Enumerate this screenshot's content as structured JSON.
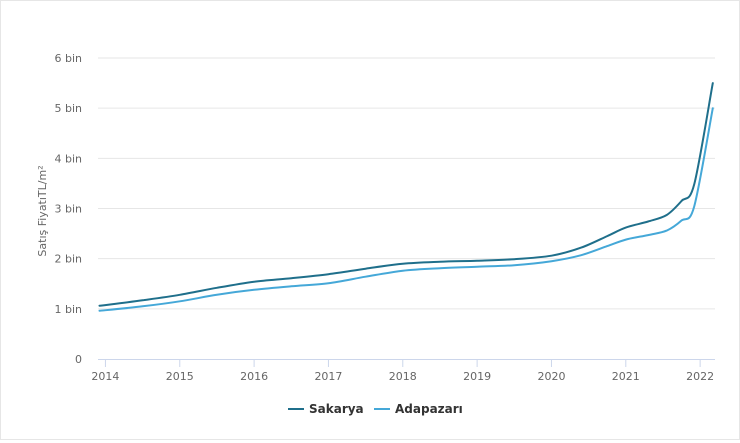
{
  "chart_data": {
    "type": "line",
    "title": "",
    "xlabel": "",
    "ylabel": "Satış FiyatıTL/m²",
    "ylim": [
      0,
      6000
    ],
    "xlim": [
      2013.9,
      2022.2
    ],
    "grid": true,
    "legend_position": "bottom",
    "y_ticks": [
      {
        "value": 0,
        "label": "0"
      },
      {
        "value": 1000,
        "label": "1 bin"
      },
      {
        "value": 2000,
        "label": "2 bin"
      },
      {
        "value": 3000,
        "label": "3 bin"
      },
      {
        "value": 4000,
        "label": "4 bin"
      },
      {
        "value": 5000,
        "label": "5 bin"
      },
      {
        "value": 6000,
        "label": "6 bin"
      }
    ],
    "x_ticks": [
      {
        "value": 2014,
        "label": "2014"
      },
      {
        "value": 2015,
        "label": "2015"
      },
      {
        "value": 2016,
        "label": "2016"
      },
      {
        "value": 2017,
        "label": "2017"
      },
      {
        "value": 2018,
        "label": "2018"
      },
      {
        "value": 2019,
        "label": "2019"
      },
      {
        "value": 2020,
        "label": "2020"
      },
      {
        "value": 2021,
        "label": "2021"
      },
      {
        "value": 2022,
        "label": "2022"
      }
    ],
    "series": [
      {
        "name": "Sakarya",
        "color": "#1f6f8b",
        "points": [
          [
            2013.92,
            1060
          ],
          [
            2014.5,
            1170
          ],
          [
            2015,
            1280
          ],
          [
            2015.5,
            1420
          ],
          [
            2016,
            1540
          ],
          [
            2016.5,
            1610
          ],
          [
            2017,
            1690
          ],
          [
            2017.5,
            1800
          ],
          [
            2018,
            1900
          ],
          [
            2018.5,
            1940
          ],
          [
            2019,
            1960
          ],
          [
            2019.5,
            1990
          ],
          [
            2020,
            2060
          ],
          [
            2020.4,
            2220
          ],
          [
            2020.75,
            2450
          ],
          [
            2021,
            2620
          ],
          [
            2021.3,
            2740
          ],
          [
            2021.55,
            2870
          ],
          [
            2021.75,
            3150
          ],
          [
            2021.92,
            3480
          ],
          [
            2022.17,
            5500
          ]
        ]
      },
      {
        "name": "Adapazarı",
        "color": "#45a8d8",
        "points": [
          [
            2013.92,
            960
          ],
          [
            2014.5,
            1050
          ],
          [
            2015,
            1150
          ],
          [
            2015.5,
            1280
          ],
          [
            2016,
            1380
          ],
          [
            2016.5,
            1450
          ],
          [
            2017,
            1510
          ],
          [
            2017.5,
            1640
          ],
          [
            2018,
            1760
          ],
          [
            2018.5,
            1810
          ],
          [
            2019,
            1840
          ],
          [
            2019.5,
            1870
          ],
          [
            2020,
            1950
          ],
          [
            2020.4,
            2070
          ],
          [
            2020.75,
            2250
          ],
          [
            2021,
            2380
          ],
          [
            2021.3,
            2470
          ],
          [
            2021.55,
            2560
          ],
          [
            2021.75,
            2760
          ],
          [
            2021.92,
            3040
          ],
          [
            2022.17,
            5000
          ]
        ]
      }
    ]
  }
}
